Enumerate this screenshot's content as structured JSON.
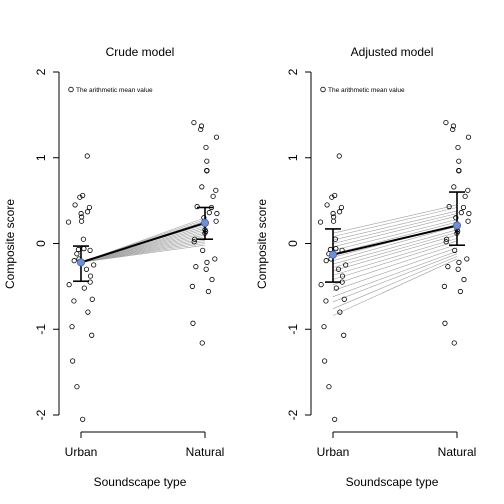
{
  "chart_data": [
    {
      "type": "scatter",
      "title": "Crude model",
      "xlabel": "Soundscape type",
      "ylabel": "Composite score",
      "categories": [
        "Urban",
        "Natural"
      ],
      "ylim": [
        -2,
        2
      ],
      "yticks": [
        -2,
        -1,
        0,
        1,
        2
      ],
      "ytick_labels": [
        "-2",
        "-1",
        "0",
        "1",
        "2"
      ],
      "grid": false,
      "legend": {
        "placement": "top-left",
        "entries": [
          "The arithmetic mean value"
        ]
      },
      "series": [
        {
          "category": "Urban",
          "values": [
            1.02,
            0.56,
            0.54,
            0.45,
            0.42,
            0.37,
            0.35,
            0.31,
            0.26,
            0.25,
            0.05,
            -0.06,
            -0.07,
            -0.08,
            -0.12,
            -0.18,
            -0.2,
            -0.25,
            -0.3,
            -0.38,
            -0.45,
            -0.48,
            -0.52,
            -0.65,
            -0.67,
            -0.8,
            -0.97,
            -1.07,
            -1.37,
            -1.67,
            -2.05
          ]
        },
        {
          "category": "Natural",
          "values": [
            1.41,
            1.37,
            1.33,
            1.24,
            1.12,
            0.96,
            0.85,
            0.85,
            0.85,
            0.66,
            0.62,
            0.55,
            0.43,
            0.42,
            0.36,
            0.35,
            0.3,
            0.26,
            0.16,
            0.14,
            0.12,
            0.05,
            0.02,
            -0.08,
            -0.18,
            -0.22,
            -0.27,
            -0.3,
            -0.42,
            -0.5,
            -0.56,
            -0.93,
            -1.16
          ]
        }
      ],
      "pair_lines": [
        [
          -0.22,
          -0.02
        ],
        [
          -0.22,
          0.0
        ],
        [
          -0.22,
          0.02
        ],
        [
          -0.22,
          0.04
        ],
        [
          -0.22,
          0.06
        ],
        [
          -0.22,
          0.08
        ],
        [
          -0.22,
          0.1
        ],
        [
          -0.22,
          0.12
        ],
        [
          -0.22,
          0.14
        ],
        [
          -0.22,
          0.16
        ],
        [
          -0.22,
          0.18
        ],
        [
          -0.22,
          0.2
        ],
        [
          -0.22,
          0.22
        ],
        [
          -0.22,
          0.24
        ],
        [
          -0.22,
          0.26
        ],
        [
          -0.22,
          0.28
        ],
        [
          -0.22,
          0.3
        ]
      ],
      "means": [
        {
          "category": "Urban",
          "mean": -0.22,
          "lower": -0.44,
          "upper": -0.03
        },
        {
          "category": "Natural",
          "mean": 0.24,
          "lower": 0.05,
          "upper": 0.42
        }
      ]
    },
    {
      "type": "scatter",
      "title": "Adjusted model",
      "xlabel": "Soundscape type",
      "ylabel": "Composite score",
      "categories": [
        "Urban",
        "Natural"
      ],
      "ylim": [
        -2,
        2
      ],
      "yticks": [
        -2,
        -1,
        0,
        1,
        2
      ],
      "ytick_labels": [
        "-2",
        "-1",
        "0",
        "1",
        "2"
      ],
      "grid": false,
      "legend": {
        "placement": "top-left",
        "entries": [
          "The arithmetic mean value"
        ]
      },
      "series": [
        {
          "category": "Urban",
          "values": [
            1.02,
            0.56,
            0.54,
            0.45,
            0.42,
            0.37,
            0.35,
            0.31,
            0.26,
            0.25,
            0.05,
            -0.06,
            -0.07,
            -0.08,
            -0.12,
            -0.18,
            -0.2,
            -0.25,
            -0.3,
            -0.38,
            -0.45,
            -0.48,
            -0.52,
            -0.65,
            -0.67,
            -0.8,
            -0.97,
            -1.07,
            -1.37,
            -1.67,
            -2.05
          ]
        },
        {
          "category": "Natural",
          "values": [
            1.41,
            1.37,
            1.33,
            1.24,
            1.12,
            0.96,
            0.85,
            0.85,
            0.85,
            0.66,
            0.62,
            0.55,
            0.43,
            0.42,
            0.36,
            0.35,
            0.3,
            0.26,
            0.16,
            0.14,
            0.12,
            0.05,
            0.02,
            -0.08,
            -0.18,
            -0.22,
            -0.27,
            -0.3,
            -0.42,
            -0.5,
            -0.56,
            -0.93,
            -1.16
          ]
        }
      ],
      "pair_lines": [
        [
          0.12,
          0.45
        ],
        [
          0.08,
          0.42
        ],
        [
          0.04,
          0.38
        ],
        [
          0.0,
          0.35
        ],
        [
          -0.04,
          0.32
        ],
        [
          -0.08,
          0.28
        ],
        [
          -0.12,
          0.25
        ],
        [
          -0.16,
          0.22
        ],
        [
          -0.2,
          0.2
        ],
        [
          -0.24,
          0.16
        ],
        [
          -0.28,
          0.13
        ],
        [
          -0.32,
          0.1
        ],
        [
          -0.37,
          0.06
        ],
        [
          -0.42,
          0.03
        ],
        [
          -0.48,
          -0.01
        ],
        [
          -0.55,
          -0.05
        ],
        [
          -0.62,
          -0.09
        ],
        [
          -0.68,
          -0.12
        ],
        [
          -0.76,
          -0.15
        ],
        [
          -0.84,
          -0.18
        ]
      ],
      "means": [
        {
          "category": "Urban",
          "mean": -0.13,
          "lower": -0.45,
          "upper": 0.17
        },
        {
          "category": "Natural",
          "mean": 0.21,
          "lower": -0.02,
          "upper": 0.6
        }
      ]
    }
  ],
  "colors": {
    "axis": "#000000",
    "points": "#000000",
    "pair_lines": "#a0a0a0",
    "mean_line": "#000000",
    "mean_marker": "#6f8fd6"
  }
}
